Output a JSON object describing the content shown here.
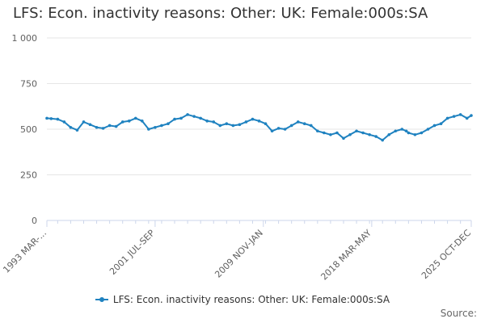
{
  "chart_data": {
    "type": "line",
    "title": "LFS: Econ. inactivity reasons: Other: UK: Female:000s:SA",
    "xlabel": "",
    "ylabel": "",
    "ylim": [
      0,
      1000
    ],
    "y_ticks": [
      0,
      250,
      500,
      750,
      1000
    ],
    "y_tick_labels": [
      "0",
      "250",
      "500",
      "750",
      "1 000"
    ],
    "x_range": [
      1993.17,
      2025.83
    ],
    "x_ticks": [
      {
        "x": 1993.17,
        "label": "1993 MAR-..."
      },
      {
        "x": 2001.5,
        "label": "2001 JUL-SEP"
      },
      {
        "x": 2009.83,
        "label": "2009 NOV-JAN"
      },
      {
        "x": 2018.17,
        "label": "2018 MAR-MAY"
      },
      {
        "x": 2025.83,
        "label": "2025 OCT-DEC"
      }
    ],
    "grid": true,
    "legend": "bottom-center",
    "series": [
      {
        "name": "LFS: Econ. inactivity reasons: Other: UK: Female:000s:SA",
        "color": "#1f82c0",
        "x": [
          1993.17,
          1993.5,
          1994.0,
          1994.5,
          1995.0,
          1995.5,
          1996.0,
          1996.5,
          1997.0,
          1997.5,
          1998.0,
          1998.5,
          1999.0,
          1999.5,
          2000.0,
          2000.5,
          2001.0,
          2001.5,
          2002.0,
          2002.5,
          2003.0,
          2003.5,
          2004.0,
          2004.5,
          2005.0,
          2005.5,
          2006.0,
          2006.5,
          2007.0,
          2007.5,
          2008.0,
          2008.5,
          2009.0,
          2009.5,
          2010.0,
          2010.5,
          2011.0,
          2011.5,
          2012.0,
          2012.5,
          2013.0,
          2013.5,
          2014.0,
          2014.5,
          2015.0,
          2015.5,
          2016.0,
          2016.5,
          2017.0,
          2017.5,
          2018.0,
          2018.5,
          2019.0,
          2019.5,
          2020.0,
          2020.5,
          2020.83,
          2021.0,
          2021.5,
          2022.0,
          2022.5,
          2023.0,
          2023.5,
          2024.0,
          2024.5,
          2025.0,
          2025.5,
          2025.83
        ],
        "values": [
          560,
          558,
          555,
          540,
          510,
          495,
          540,
          525,
          510,
          505,
          520,
          515,
          540,
          545,
          560,
          545,
          500,
          510,
          520,
          530,
          555,
          560,
          580,
          570,
          560,
          545,
          540,
          520,
          530,
          520,
          525,
          540,
          555,
          545,
          530,
          490,
          505,
          500,
          520,
          540,
          530,
          520,
          490,
          480,
          470,
          480,
          450,
          470,
          490,
          480,
          470,
          460,
          440,
          470,
          490,
          500,
          490,
          480,
          470,
          480,
          500,
          520,
          530,
          560,
          570,
          580,
          560,
          575
        ]
      }
    ]
  },
  "source_label": "Source:"
}
